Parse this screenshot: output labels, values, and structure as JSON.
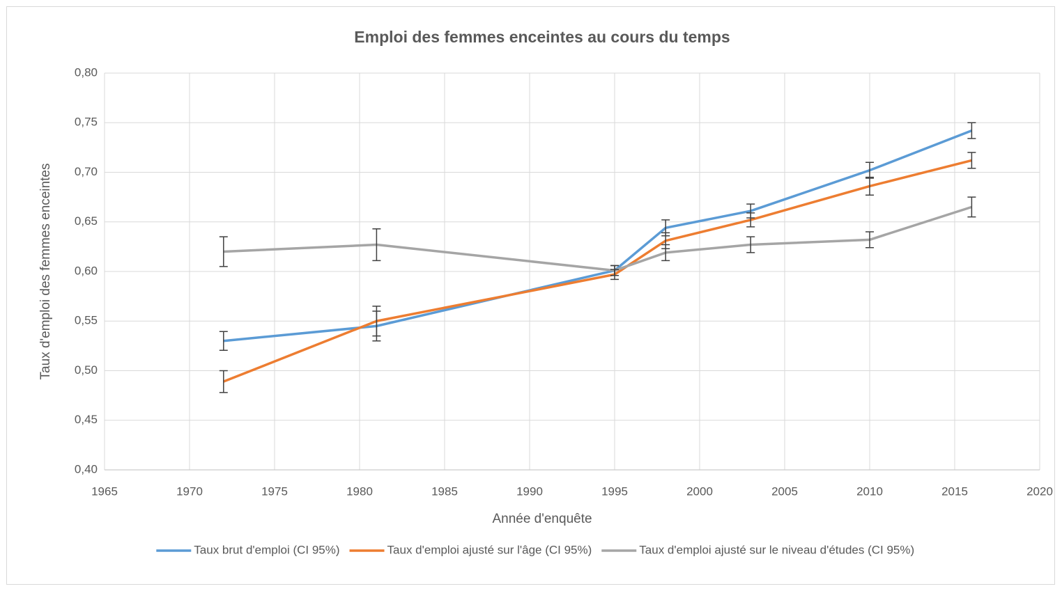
{
  "chart_data": {
    "type": "line",
    "title": "Emploi des femmes enceintes au cours du temps",
    "xlabel": "Année d'enquête",
    "ylabel": "Taux d'emploi des femmes enceintes",
    "x": [
      1972,
      1981,
      1995,
      1998,
      2003,
      2010,
      2016
    ],
    "series": [
      {
        "name": "Taux brut d'emploi (CI 95%)",
        "color": "#5b9bd5",
        "values": [
          0.53,
          0.545,
          0.601,
          0.644,
          0.661,
          0.702,
          0.742
        ],
        "errors": [
          0.0095,
          0.015,
          0.005,
          0.008,
          0.007,
          0.008,
          0.008
        ]
      },
      {
        "name": "Taux d'emploi ajusté sur l'âge (CI 95%)",
        "color": "#ed7d31",
        "values": [
          0.489,
          0.55,
          0.597,
          0.631,
          0.652,
          0.686,
          0.712
        ],
        "errors": [
          0.011,
          0.015,
          0.005,
          0.008,
          0.007,
          0.009,
          0.008
        ]
      },
      {
        "name": "Taux d'emploi ajusté sur le niveau d'études (CI 95%)",
        "color": "#a5a5a5",
        "values": [
          0.62,
          0.627,
          0.601,
          0.619,
          0.627,
          0.632,
          0.665
        ],
        "errors": [
          0.015,
          0.016,
          0.005,
          0.008,
          0.008,
          0.008,
          0.01
        ]
      }
    ],
    "error_color": "#404040",
    "xlim": [
      1965,
      2020
    ],
    "xticks": [
      1965,
      1970,
      1975,
      1980,
      1985,
      1990,
      1995,
      2000,
      2005,
      2010,
      2015,
      2020
    ],
    "ylim": [
      0.4,
      0.8
    ],
    "yticks": [
      {
        "value": 0.4,
        "label": "0,40"
      },
      {
        "value": 0.45,
        "label": "0,45"
      },
      {
        "value": 0.5,
        "label": "0,50"
      },
      {
        "value": 0.55,
        "label": "0,55"
      },
      {
        "value": 0.6,
        "label": "0,60"
      },
      {
        "value": 0.65,
        "label": "0,65"
      },
      {
        "value": 0.7,
        "label": "0,70"
      },
      {
        "value": 0.75,
        "label": "0,75"
      },
      {
        "value": 0.8,
        "label": "0,80"
      }
    ],
    "grid": true,
    "legend": "bottom"
  }
}
